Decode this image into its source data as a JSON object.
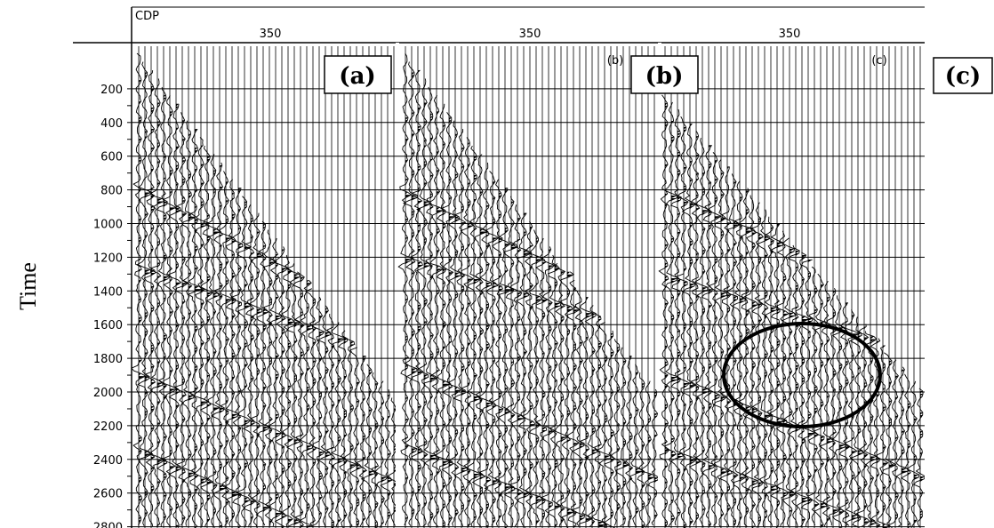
{
  "figure": {
    "x_header": "CDP",
    "y_axis_title": "Time",
    "panels": [
      {
        "id": "a",
        "cdp_tick": "350",
        "tiny_label": "",
        "box_label": "(a)"
      },
      {
        "id": "b",
        "cdp_tick": "350",
        "tiny_label": "(b)",
        "box_label": "(b)"
      },
      {
        "id": "c",
        "cdp_tick": "350",
        "tiny_label": "(c)",
        "box_label": "(c)"
      }
    ],
    "time_ticks": [
      "200",
      "400",
      "600",
      "800",
      "1000",
      "1200",
      "1400",
      "1600",
      "1800",
      "2000",
      "2200",
      "2400",
      "2600",
      "2800"
    ],
    "annotation": "ellipse-highlight",
    "colors": {
      "ink": "#000000",
      "background": "#ffffff"
    }
  }
}
